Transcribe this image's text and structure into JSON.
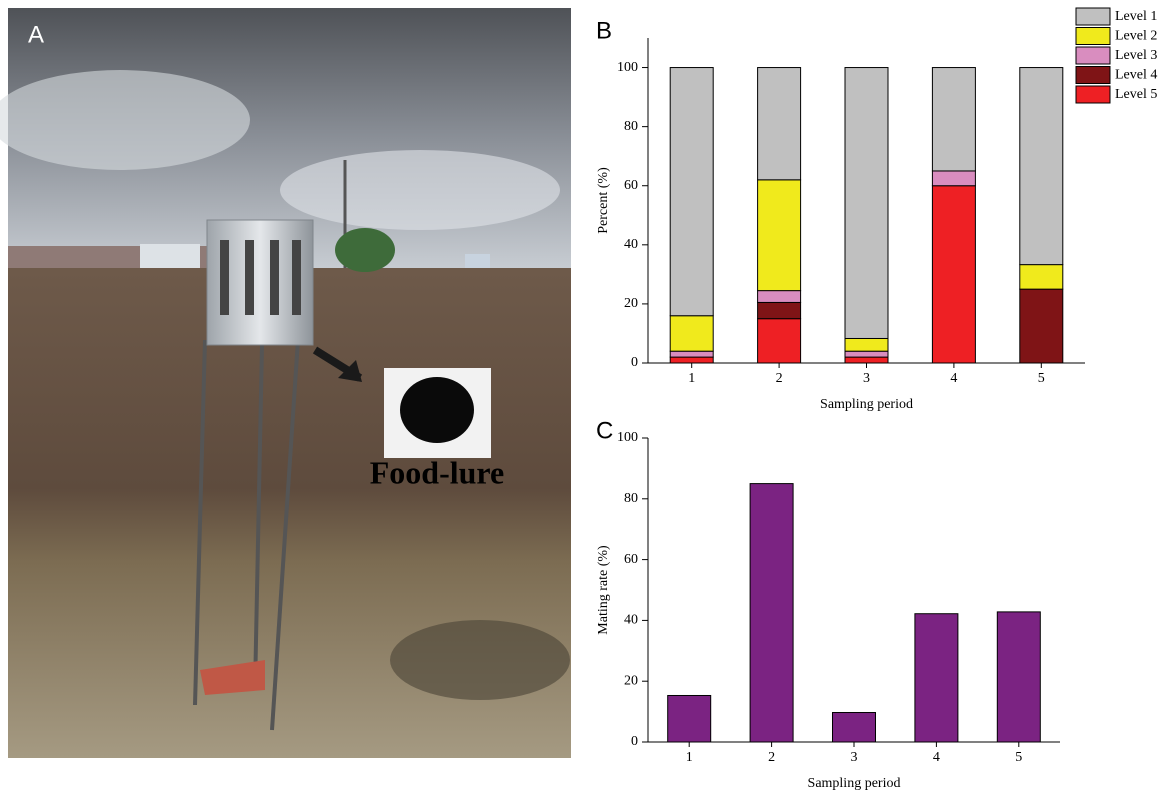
{
  "photo": {
    "label": "A",
    "annotation": "Food-lure"
  },
  "chart_data": [
    {
      "type": "stacked_bar",
      "panel_label": "B",
      "x_label": "Sampling period",
      "y_label": "Percent (%)",
      "categories": [
        "1",
        "2",
        "3",
        "4",
        "5"
      ],
      "series": [
        {
          "name": "Level 1",
          "color": "#c0c0c0",
          "values": [
            84,
            38,
            91.7,
            35,
            66.7
          ]
        },
        {
          "name": "Level 2",
          "color": "#f0ea1c",
          "values": [
            12,
            37.5,
            4.3,
            0,
            8.3
          ]
        },
        {
          "name": "Level 3",
          "color": "#d98dbf",
          "values": [
            2,
            4,
            2,
            5,
            0
          ]
        },
        {
          "name": "Level 4",
          "color": "#7f1416",
          "values": [
            0,
            5.5,
            0,
            0,
            25
          ]
        },
        {
          "name": "Level 5",
          "color": "#ee2024",
          "values": [
            2,
            15,
            2,
            60,
            0
          ]
        }
      ],
      "ylim": [
        0,
        110
      ],
      "yticks": [
        0,
        20,
        40,
        60,
        80,
        100
      ],
      "legend": "top-right"
    },
    {
      "type": "bar",
      "panel_label": "C",
      "x_label": "Sampling period",
      "y_label": "Mating rate (%)",
      "categories": [
        "1",
        "2",
        "3",
        "4",
        "5"
      ],
      "color": "#7b2382",
      "values": [
        15.3,
        85,
        9.7,
        42.2,
        42.8
      ],
      "ylim": [
        0,
        100
      ],
      "yticks": [
        0,
        20,
        40,
        60,
        80,
        100
      ]
    }
  ]
}
